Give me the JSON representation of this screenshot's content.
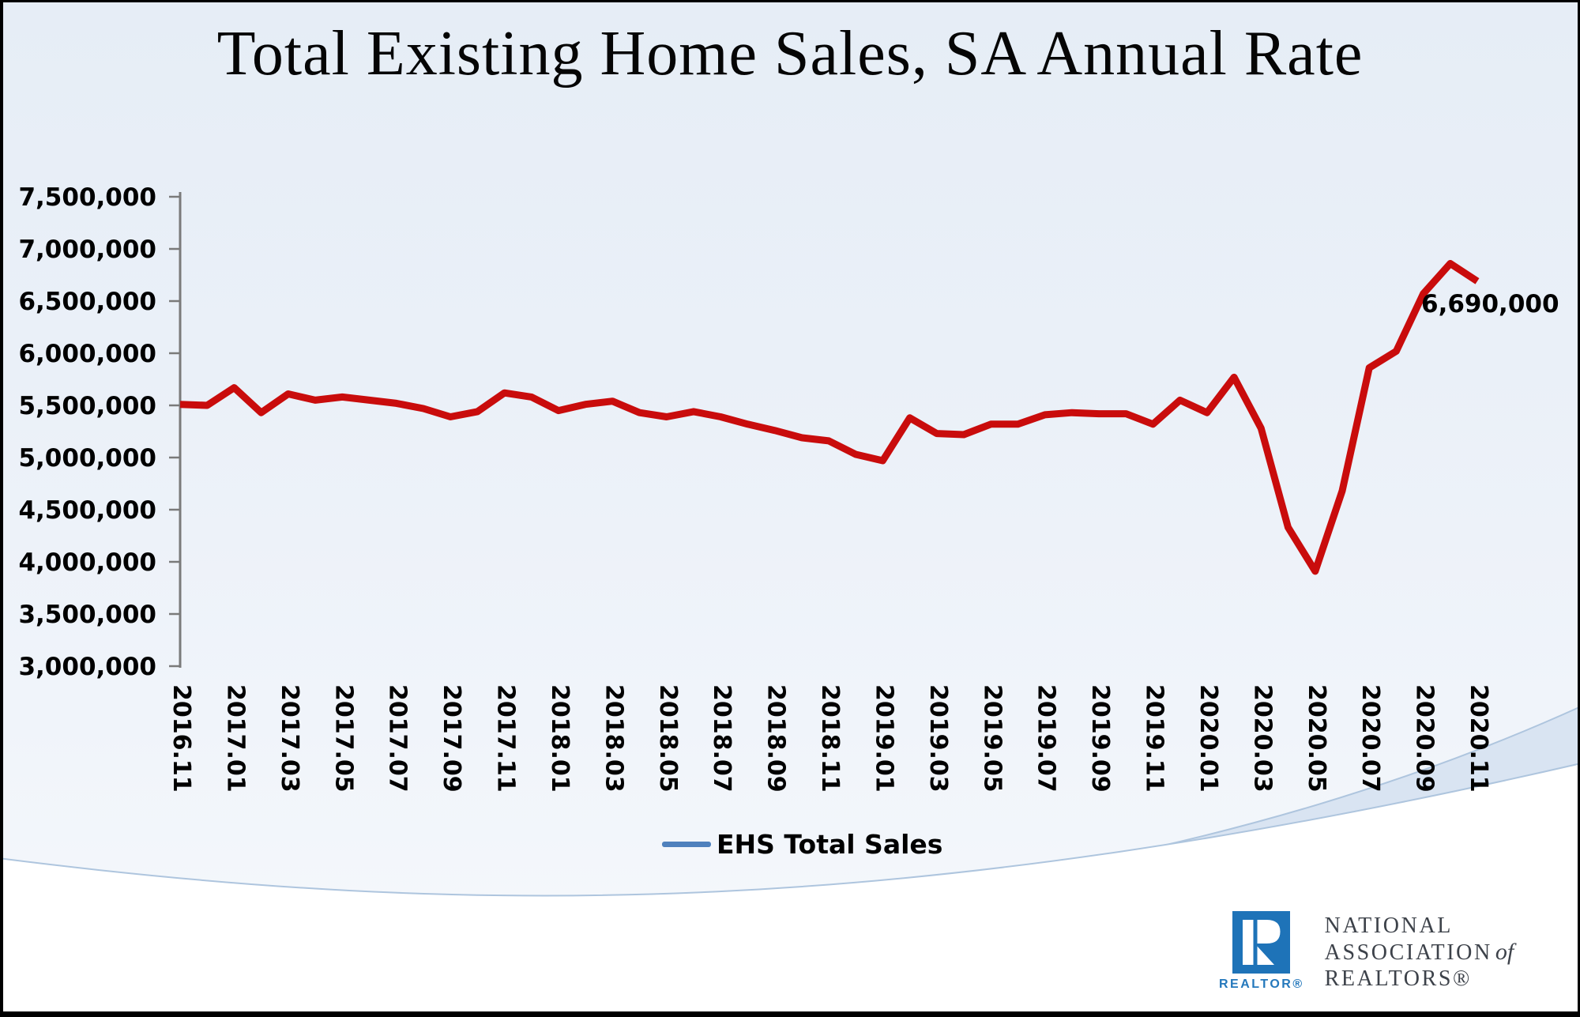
{
  "title": "Total Existing Home Sales, SA Annual Rate",
  "legend": {
    "label": "EHS Total Sales",
    "line_color": "#4F81BD"
  },
  "annotation": {
    "last_value_label": "6,690,000"
  },
  "colors": {
    "line_red": "#C90C0C",
    "axis_gray": "#7a7a7a",
    "arc_stroke": "#aec5de",
    "band_fill": "#d9e4f2",
    "brand_blue": "#1E73B8"
  },
  "chart_data": {
    "type": "line",
    "title": "Total Existing Home Sales, SA Annual Rate",
    "xlabel": "",
    "ylabel": "",
    "ylim": [
      3000000,
      7500000
    ],
    "grid": false,
    "legend_position": "bottom",
    "y_ticks": [
      3000000,
      3500000,
      4000000,
      4500000,
      5000000,
      5500000,
      6000000,
      6500000,
      7000000,
      7500000
    ],
    "x_tick_labels": [
      "2016.11",
      "2017.01",
      "2017.03",
      "2017.05",
      "2017.07",
      "2017.09",
      "2017.11",
      "2018.01",
      "2018.03",
      "2018.05",
      "2018.07",
      "2018.09",
      "2018.11",
      "2019.01",
      "2019.03",
      "2019.05",
      "2019.07",
      "2019.09",
      "2019.11",
      "2020.01",
      "2020.03",
      "2020.05",
      "2020.07",
      "2020.09",
      "2020.11"
    ],
    "series": [
      {
        "name": "EHS Total Sales",
        "color": "#C90C0C",
        "x": [
          "2016.11",
          "2016.12",
          "2017.01",
          "2017.02",
          "2017.03",
          "2017.04",
          "2017.05",
          "2017.06",
          "2017.07",
          "2017.08",
          "2017.09",
          "2017.10",
          "2017.11",
          "2017.12",
          "2018.01",
          "2018.02",
          "2018.03",
          "2018.04",
          "2018.05",
          "2018.06",
          "2018.07",
          "2018.08",
          "2018.09",
          "2018.10",
          "2018.11",
          "2018.12",
          "2019.01",
          "2019.02",
          "2019.03",
          "2019.04",
          "2019.05",
          "2019.06",
          "2019.07",
          "2019.08",
          "2019.09",
          "2019.10",
          "2019.11",
          "2019.12",
          "2020.01",
          "2020.02",
          "2020.03",
          "2020.04",
          "2020.05",
          "2020.06",
          "2020.07",
          "2020.08",
          "2020.09",
          "2020.10",
          "2020.11"
        ],
        "values": [
          5510000,
          5500000,
          5670000,
          5430000,
          5610000,
          5550000,
          5580000,
          5550000,
          5520000,
          5470000,
          5390000,
          5440000,
          5620000,
          5580000,
          5450000,
          5510000,
          5540000,
          5430000,
          5390000,
          5440000,
          5390000,
          5320000,
          5260000,
          5190000,
          5160000,
          5030000,
          4970000,
          5380000,
          5230000,
          5220000,
          5320000,
          5320000,
          5410000,
          5430000,
          5420000,
          5420000,
          5320000,
          5550000,
          5430000,
          5770000,
          5280000,
          4330000,
          3910000,
          4680000,
          5860000,
          6020000,
          6570000,
          6860000,
          6690000
        ]
      }
    ]
  },
  "logo": {
    "wordmark": "REALTOR®",
    "org_line1": "NATIONAL",
    "org_line2": "ASSOCIATION",
    "org_line2_suffix": "of",
    "org_line3": "REALTORS®"
  }
}
